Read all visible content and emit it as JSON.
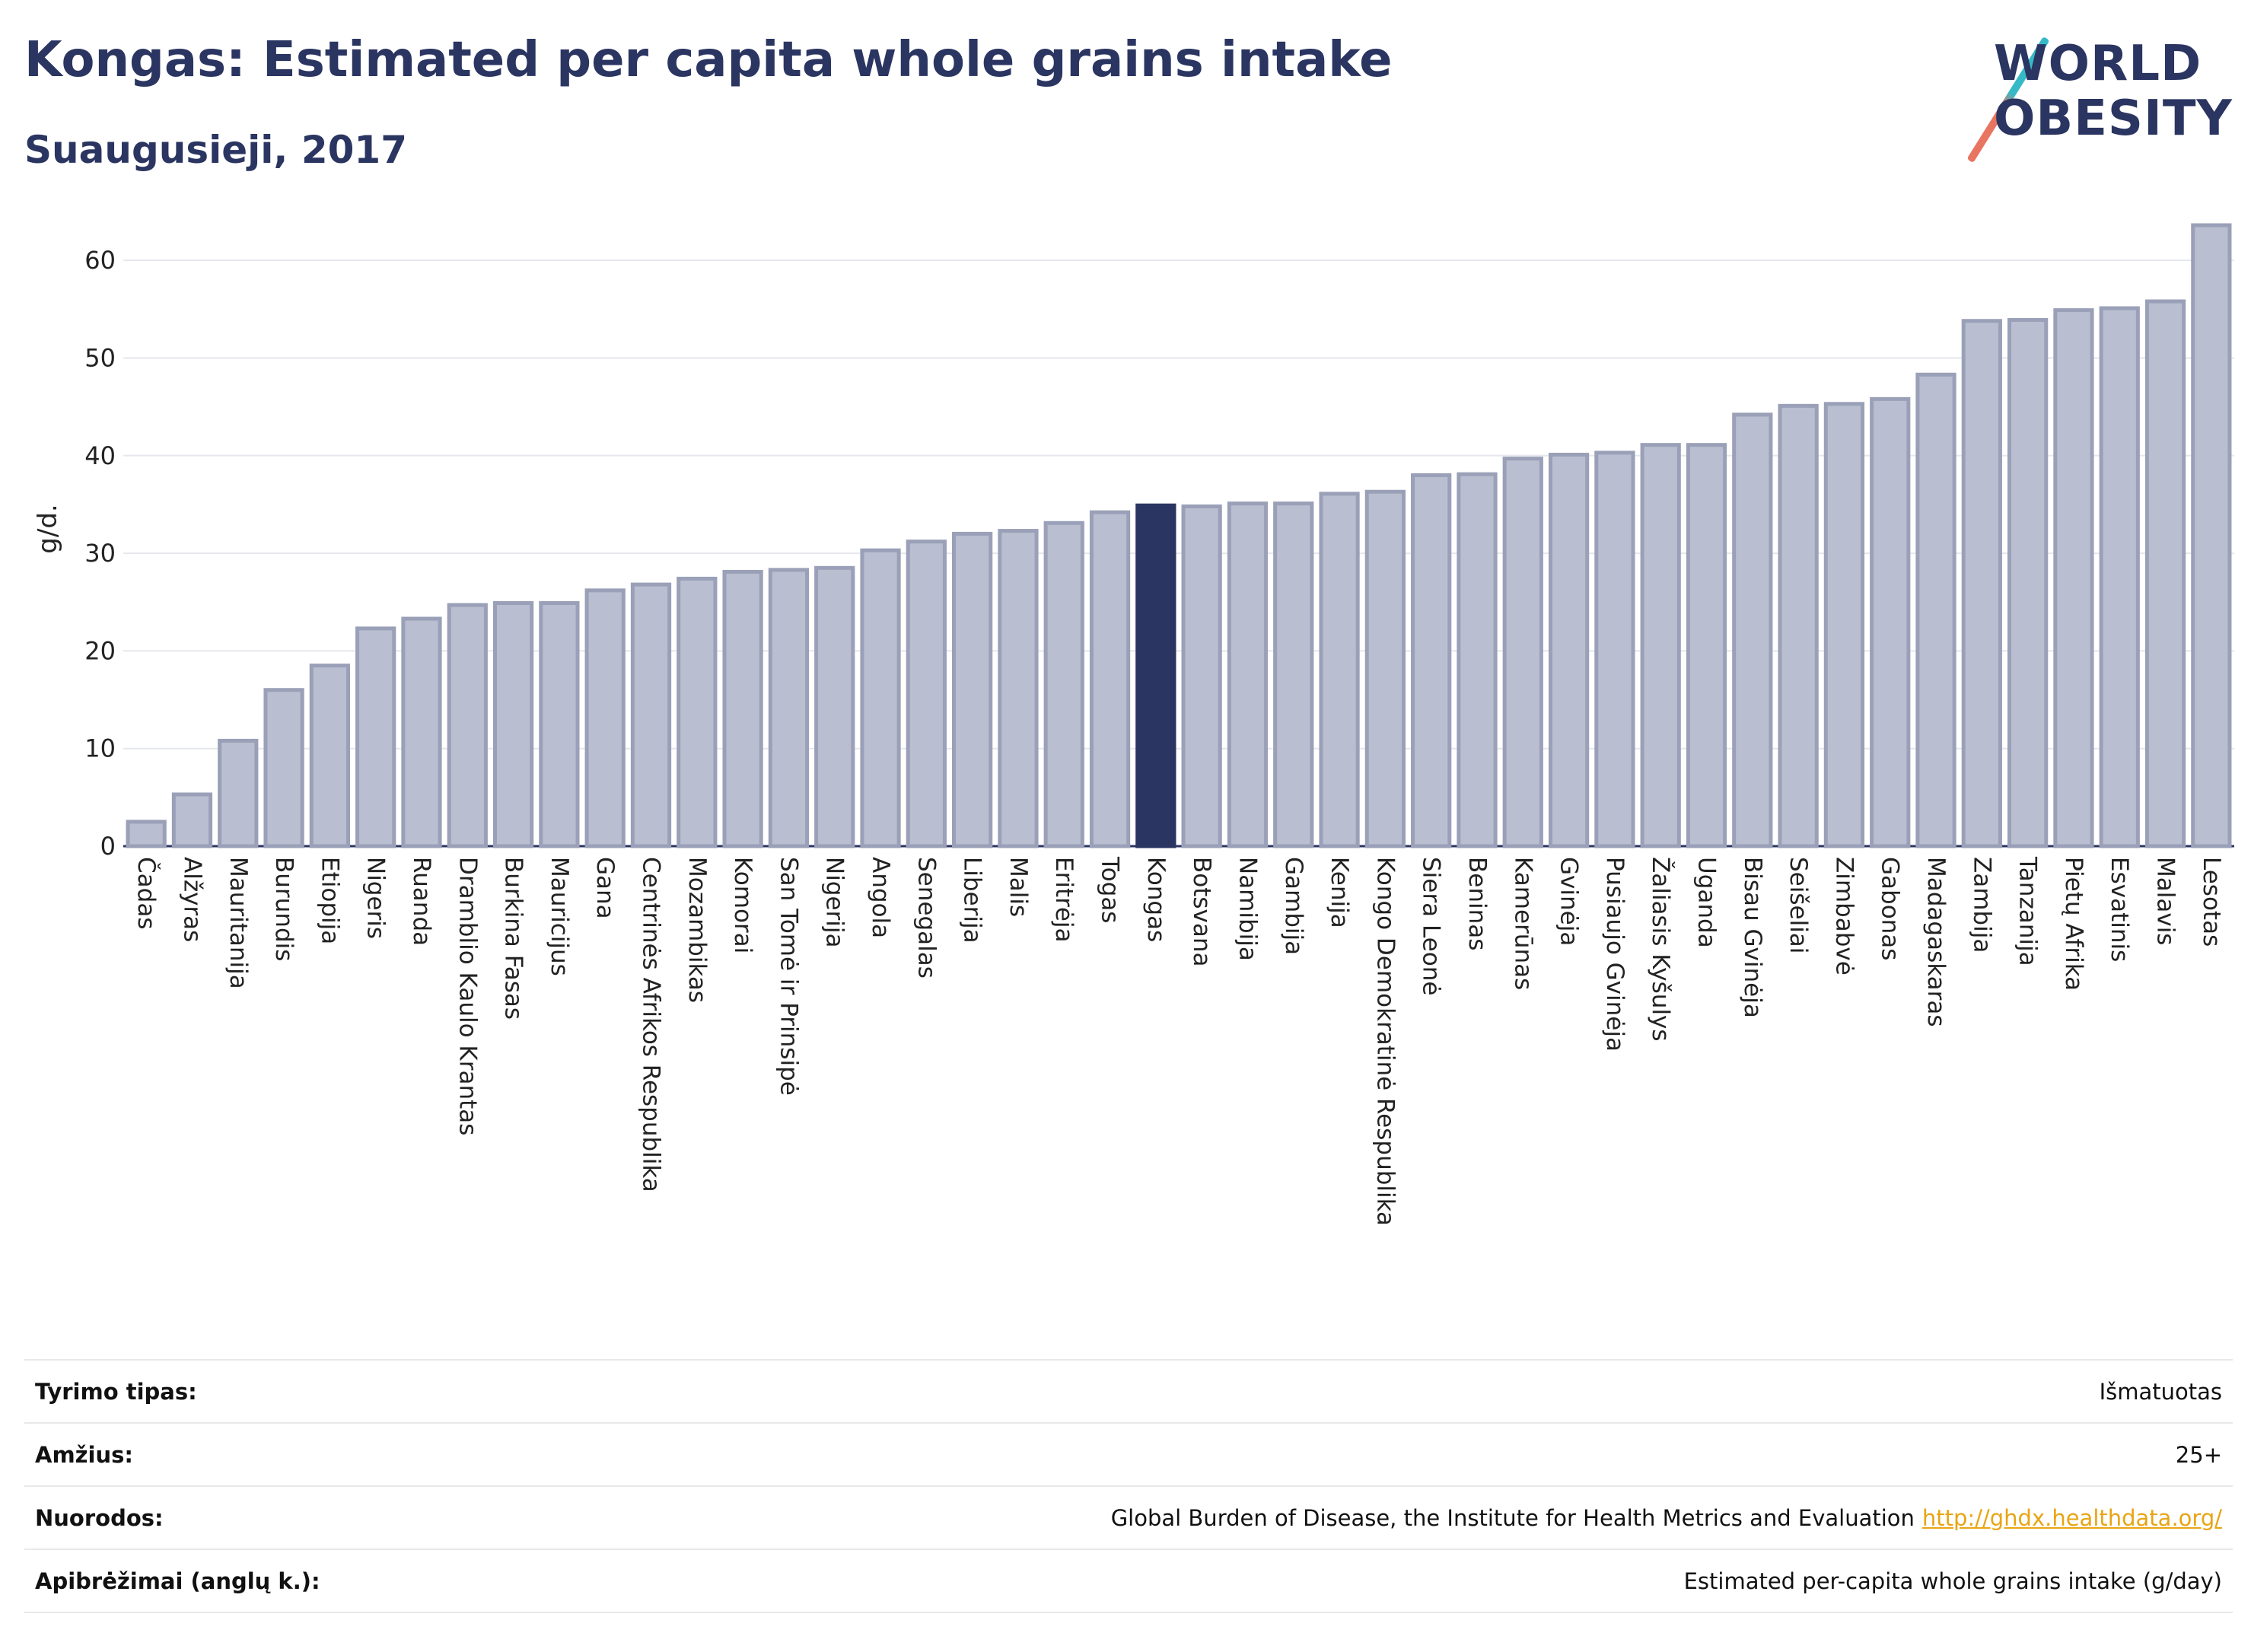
{
  "header": {
    "title": "Kongas: Estimated per capita whole grains intake",
    "subtitle": "Suaugusieji, 2017"
  },
  "logo": {
    "line1": "WORLD",
    "line2": "OBESITY"
  },
  "colors": {
    "bar": "#b9bed0",
    "bar_edge": "#9aa0b7",
    "highlight": "#2b3561",
    "text_dark": "#2b3561",
    "link": "#e8a514"
  },
  "chart_data": {
    "type": "bar",
    "title": "Kongas: Estimated per capita whole grains intake",
    "subtitle": "Suaugusieji, 2017",
    "ylabel": "g/d.",
    "xlabel": "",
    "ylim": [
      0,
      65
    ],
    "yticks": [
      0,
      10,
      20,
      30,
      40,
      50,
      60
    ],
    "grid": true,
    "highlight": "Kongas",
    "categories": [
      "Čadas",
      "Alžyras",
      "Mauritanija",
      "Burundis",
      "Etiopija",
      "Nigeris",
      "Ruanda",
      "Dramblio Kaulo Krantas",
      "Burkina Fasas",
      "Mauricijus",
      "Gana",
      "Centrinės Afrikos Respublika",
      "Mozambikas",
      "Komorai",
      "San Tomė ir Prinsipė",
      "Nigerija",
      "Angola",
      "Senegalas",
      "Liberija",
      "Malis",
      "Eritrėja",
      "Togas",
      "Kongas",
      "Botsvana",
      "Namibija",
      "Gambija",
      "Kenija",
      "Kongo Demokratinė Respublika",
      "Siera Leonė",
      "Beninas",
      "Kamerūnas",
      "Gvinėja",
      "Pusiaujo Gvinėja",
      "Žaliasis Kyšulys",
      "Uganda",
      "Bisau Gvinėja",
      "Seišeliai",
      "Zimbabvė",
      "Gabonas",
      "Madagaskaras",
      "Zambija",
      "Tanzanija",
      "Pietų Afrika",
      "Esvatinis",
      "Malavis",
      "Lesotas"
    ],
    "values": [
      2.5,
      5.3,
      10.8,
      16.0,
      18.5,
      22.3,
      23.3,
      24.7,
      24.9,
      24.9,
      26.2,
      26.8,
      27.4,
      28.1,
      28.3,
      28.5,
      30.3,
      31.2,
      32.0,
      32.3,
      33.1,
      34.2,
      34.9,
      34.8,
      35.1,
      35.1,
      36.1,
      36.3,
      38.0,
      38.1,
      39.7,
      40.1,
      40.3,
      41.1,
      41.1,
      44.2,
      45.1,
      45.3,
      45.8,
      48.3,
      53.8,
      53.9,
      54.9,
      55.1,
      55.8,
      63.6
    ]
  },
  "info": {
    "rows": [
      {
        "key": "Tyrimo tipas:",
        "value": "Išmatuotas"
      },
      {
        "key": "Amžius:",
        "value": "25+"
      },
      {
        "key": "Nuorodos:",
        "value": "Global Burden of Disease, the Institute for Health Metrics and Evaluation",
        "link": "http://ghdx.healthdata.org/"
      },
      {
        "key": "Apibrėžimai (anglų k.):",
        "value": "Estimated per-capita whole grains intake (g/day)"
      }
    ]
  }
}
